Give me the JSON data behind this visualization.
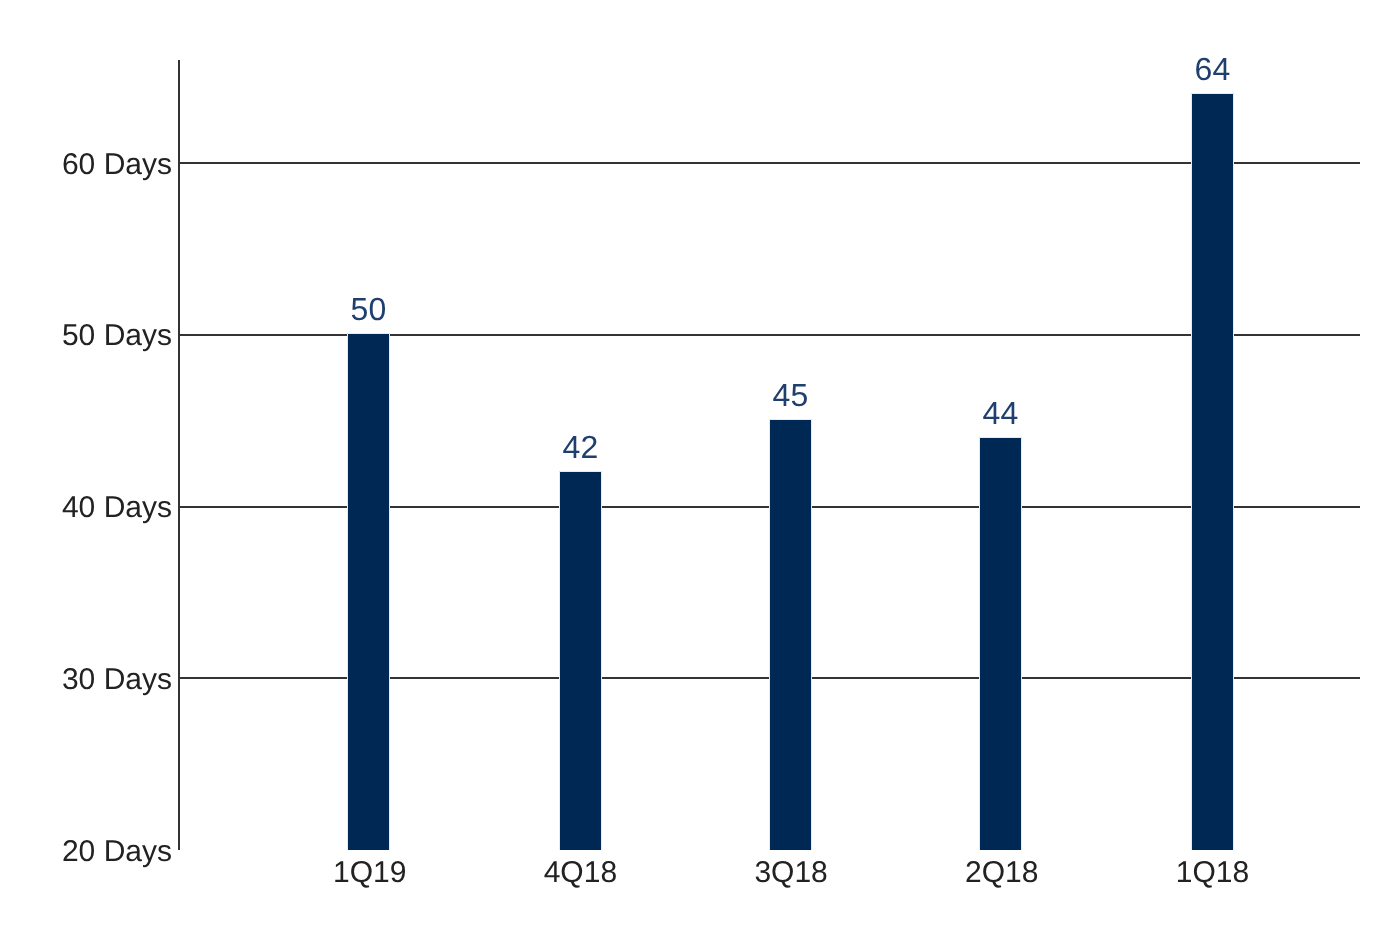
{
  "chart_data": {
    "type": "bar",
    "categories": [
      "1Q19",
      "4Q18",
      "3Q18",
      "2Q18",
      "1Q18"
    ],
    "values": [
      50,
      42,
      45,
      44,
      64
    ],
    "color": "#002855",
    "ylim": [
      20,
      66
    ],
    "yticks": [
      {
        "value": 20,
        "label": "20 Days"
      },
      {
        "value": 30,
        "label": "30 Days"
      },
      {
        "value": 40,
        "label": "40 Days"
      },
      {
        "value": 50,
        "label": "50 Days"
      },
      {
        "value": 60,
        "label": "60 Days"
      }
    ],
    "grid": "y",
    "legend": false,
    "data_labels": true
  }
}
